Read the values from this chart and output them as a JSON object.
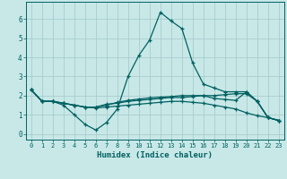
{
  "title": "",
  "xlabel": "Humidex (Indice chaleur)",
  "xlim": [
    -0.5,
    23.5
  ],
  "ylim": [
    -0.3,
    6.9
  ],
  "xticks": [
    0,
    1,
    2,
    3,
    4,
    5,
    6,
    7,
    8,
    9,
    10,
    11,
    12,
    13,
    14,
    15,
    16,
    17,
    18,
    19,
    20,
    21,
    22,
    23
  ],
  "yticks": [
    0,
    1,
    2,
    3,
    4,
    5,
    6
  ],
  "bg_color": "#c8e8e8",
  "grid_color": "#a8cccc",
  "line_color": "#006060",
  "lines": [
    [
      2.3,
      1.7,
      1.7,
      1.5,
      1.0,
      0.5,
      0.2,
      0.6,
      1.3,
      3.0,
      4.1,
      4.9,
      6.35,
      5.9,
      5.5,
      3.7,
      2.6,
      2.4,
      2.2,
      2.2,
      2.2,
      1.7,
      0.85,
      0.7
    ],
    [
      2.3,
      1.7,
      1.7,
      1.6,
      1.5,
      1.4,
      1.4,
      1.5,
      1.65,
      1.75,
      1.82,
      1.88,
      1.92,
      1.95,
      2.0,
      2.0,
      2.0,
      2.0,
      2.05,
      2.1,
      2.1,
      1.7,
      0.85,
      0.7
    ],
    [
      2.3,
      1.7,
      1.7,
      1.6,
      1.5,
      1.4,
      1.4,
      1.55,
      1.6,
      1.7,
      1.75,
      1.8,
      1.85,
      1.9,
      1.9,
      1.95,
      2.0,
      1.85,
      1.8,
      1.75,
      2.2,
      1.7,
      0.85,
      0.7
    ],
    [
      2.3,
      1.7,
      1.7,
      1.6,
      1.5,
      1.4,
      1.35,
      1.4,
      1.45,
      1.5,
      1.55,
      1.6,
      1.65,
      1.7,
      1.7,
      1.65,
      1.6,
      1.5,
      1.4,
      1.3,
      1.1,
      0.95,
      0.85,
      0.7
    ]
  ]
}
